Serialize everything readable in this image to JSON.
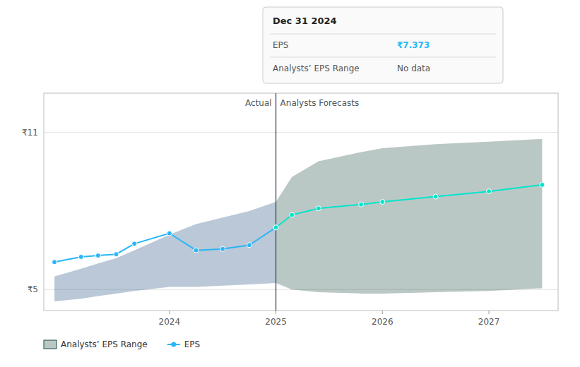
{
  "chart_data": {
    "type": "line",
    "xlim": [
      2022.82,
      2027.65
    ],
    "xticks": [
      2024.0,
      2025.0,
      2026.0,
      2027.0
    ],
    "ylim": [
      4.2,
      12.5
    ],
    "yticks": [
      {
        "value": 5,
        "label": "₹5"
      },
      {
        "value": 11,
        "label": "₹11"
      }
    ],
    "grid": true,
    "legend": "lower left",
    "series": [
      {
        "type": "area",
        "color": "#1a4a7a",
        "x": [
          2022.92,
          2023.17,
          2023.33,
          2023.5,
          2023.67,
          2024.0,
          2024.25,
          2024.5,
          2024.75,
          2025.0
        ],
        "low": [
          4.55,
          4.65,
          4.75,
          4.85,
          4.95,
          5.1,
          5.1,
          5.15,
          5.2,
          5.25
        ],
        "values": [
          5.5,
          5.8,
          6.0,
          6.2,
          6.5,
          7.1,
          7.5,
          7.75,
          8.0,
          8.35
        ]
      },
      {
        "name": "Analysts’ EPS Range",
        "type": "area",
        "color": "#1a4a40",
        "x": [
          2025.0,
          2025.15,
          2025.4,
          2025.8,
          2026.0,
          2026.5,
          2027.0,
          2027.5
        ],
        "low": [
          5.25,
          5.0,
          4.9,
          4.85,
          4.85,
          4.9,
          4.95,
          5.05
        ],
        "values": [
          8.35,
          9.3,
          9.9,
          10.25,
          10.4,
          10.55,
          10.65,
          10.75
        ]
      },
      {
        "name": "EPS",
        "type": "line",
        "color": "#29b6f6",
        "marker": "circle",
        "x": [
          2022.92,
          2023.17,
          2023.33,
          2023.5,
          2023.67,
          2024.0,
          2024.25,
          2024.5,
          2024.75,
          2025.0
        ],
        "values": [
          6.05,
          6.25,
          6.3,
          6.35,
          6.75,
          7.15,
          6.5,
          6.55,
          6.7,
          7.373
        ]
      },
      {
        "type": "line",
        "color": "#00e5cc",
        "marker": "circle",
        "x": [
          2025.0,
          2025.15,
          2025.4,
          2025.8,
          2026.0,
          2026.5,
          2027.0,
          2027.5
        ],
        "values": [
          7.373,
          7.85,
          8.1,
          8.25,
          8.35,
          8.55,
          8.75,
          9.0
        ]
      }
    ],
    "annotations": [
      {
        "type": "vline",
        "x": 2025.0,
        "color": "#2a3f55"
      },
      {
        "type": "text",
        "text": "Actual",
        "x": 2025.0,
        "align": "right"
      },
      {
        "type": "text",
        "text": "Analysts Forecasts",
        "x": 2025.0,
        "align": "left"
      }
    ],
    "tooltip": {
      "title": "Dec 31 2024",
      "rows": [
        {
          "label": "EPS",
          "value": "₹7.373",
          "color": "#29b6f6"
        },
        {
          "label": "Analysts’ EPS Range",
          "value": "No data"
        }
      ]
    }
  }
}
